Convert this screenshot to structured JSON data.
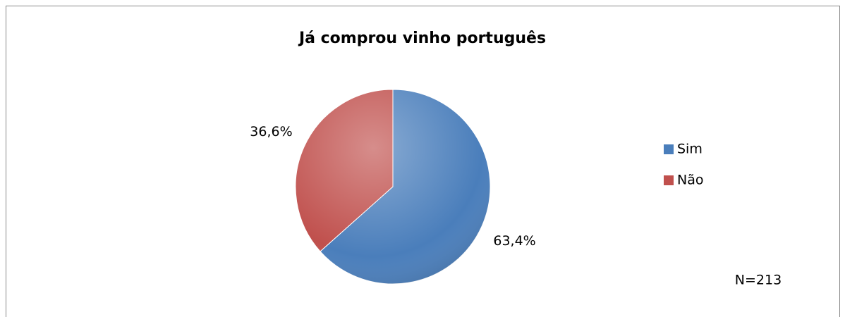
{
  "chart_data": {
    "type": "pie",
    "title": "Já comprou vinho português",
    "categories": [
      "Sim",
      "Não"
    ],
    "values": [
      63.4,
      36.6
    ],
    "value_labels": [
      "63,4%",
      "36,6%"
    ],
    "colors": [
      "#4a7ebb",
      "#c0504d"
    ],
    "legend": "right",
    "annotations": [
      "N=213"
    ]
  }
}
